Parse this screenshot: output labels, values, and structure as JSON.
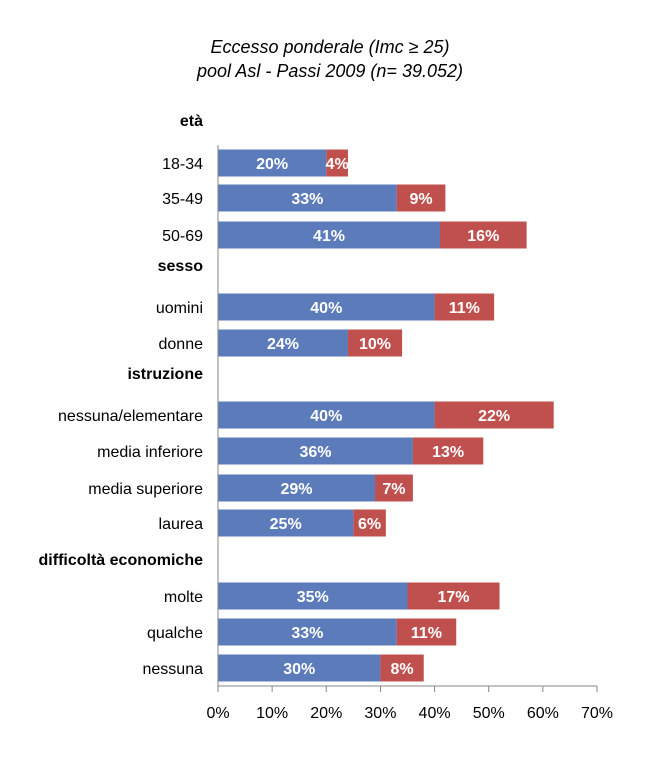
{
  "chart_data": {
    "type": "bar",
    "orientation": "horizontal",
    "stacked": true,
    "title_lines": [
      "Eccesso ponderale (Imc ≥ 25)",
      "pool Asl - Passi 2009  (n= 39.052)"
    ],
    "groups": [
      {
        "label": "età",
        "categories": [
          {
            "label": "18-34",
            "values": [
              20,
              4
            ],
            "labels": [
              "20%",
              "4%"
            ]
          },
          {
            "label": "35-49",
            "values": [
              33,
              9
            ],
            "labels": [
              "33%",
              "9%"
            ]
          },
          {
            "label": "50-69",
            "values": [
              41,
              16
            ],
            "labels": [
              "41%",
              "16%"
            ]
          }
        ]
      },
      {
        "label": "sesso",
        "categories": [
          {
            "label": "uomini",
            "values": [
              40,
              11
            ],
            "labels": [
              "40%",
              "11%"
            ]
          },
          {
            "label": "donne",
            "values": [
              24,
              10
            ],
            "labels": [
              "24%",
              "10%"
            ]
          }
        ]
      },
      {
        "label": "istruzione",
        "categories": [
          {
            "label": "nessuna/elementare",
            "values": [
              40,
              22
            ],
            "labels": [
              "40%",
              "22%"
            ]
          },
          {
            "label": "media inferiore",
            "values": [
              36,
              13
            ],
            "labels": [
              "36%",
              "13%"
            ]
          },
          {
            "label": "media superiore",
            "values": [
              29,
              7
            ],
            "labels": [
              "29%",
              "7%"
            ]
          },
          {
            "label": "laurea",
            "values": [
              25,
              6
            ],
            "labels": [
              "25%",
              "6%"
            ]
          }
        ]
      },
      {
        "label": "difficoltà economiche",
        "categories": [
          {
            "label": "molte",
            "values": [
              35,
              17
            ],
            "labels": [
              "35%",
              "17%"
            ]
          },
          {
            "label": "qualche",
            "values": [
              33,
              11
            ],
            "labels": [
              "33%",
              "11%"
            ]
          },
          {
            "label": "nessuna",
            "values": [
              30,
              8
            ],
            "labels": [
              "30%",
              "8%"
            ]
          }
        ]
      }
    ],
    "series_colors": [
      "#5b7bbb",
      "#c0504d"
    ],
    "xlim": [
      0,
      70
    ],
    "xticks": [
      "0%",
      "10%",
      "20%",
      "30%",
      "40%",
      "50%",
      "60%",
      "70%"
    ],
    "xtick_values": [
      0,
      10,
      20,
      30,
      40,
      50,
      60,
      70
    ],
    "grid": false,
    "legend": "none"
  }
}
